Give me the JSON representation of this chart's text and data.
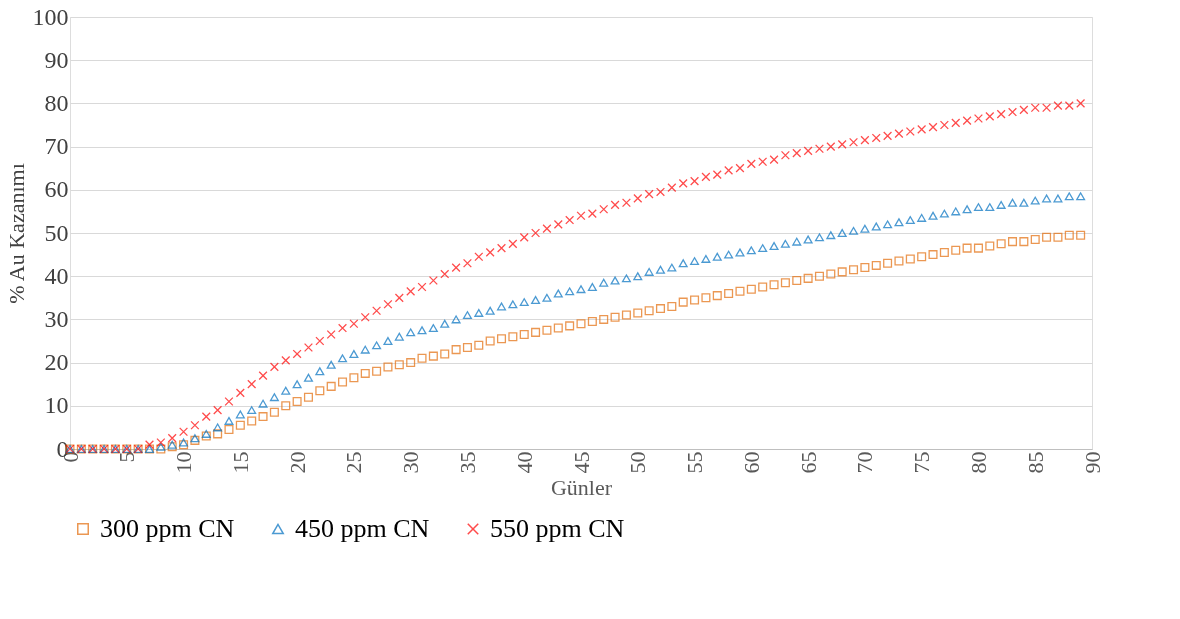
{
  "chart_data": {
    "type": "scatter",
    "xlabel": "Günler",
    "ylabel": "% Au Kazanımı",
    "x": [
      0,
      1,
      2,
      3,
      4,
      5,
      6,
      7,
      8,
      9,
      10,
      11,
      12,
      13,
      14,
      15,
      16,
      17,
      18,
      19,
      20,
      21,
      22,
      23,
      24,
      25,
      26,
      27,
      28,
      29,
      30,
      31,
      32,
      33,
      34,
      35,
      36,
      37,
      38,
      39,
      40,
      41,
      42,
      43,
      44,
      45,
      46,
      47,
      48,
      49,
      50,
      51,
      52,
      53,
      54,
      55,
      56,
      57,
      58,
      59,
      60,
      61,
      62,
      63,
      64,
      65,
      66,
      67,
      68,
      69,
      70,
      71,
      72,
      73,
      74,
      75,
      76,
      77,
      78,
      79,
      80,
      81,
      82,
      83,
      84,
      85,
      86,
      87,
      88,
      89
    ],
    "series": [
      {
        "name": "300 ppm CN",
        "color": "#e36c0a",
        "marker": "square",
        "values": [
          0,
          0,
          0,
          0,
          0,
          0,
          0,
          0,
          0,
          0.5,
          1,
          2,
          3,
          3.5,
          4.5,
          5.5,
          6.5,
          7.5,
          8.5,
          10,
          11,
          12,
          13.5,
          14.5,
          15.5,
          16.5,
          17.5,
          18,
          19,
          19.5,
          20,
          21,
          21.5,
          22,
          23,
          23.5,
          24,
          25,
          25.5,
          26,
          26.5,
          27,
          27.5,
          28,
          28.5,
          29,
          29.5,
          30,
          30.5,
          31,
          31.5,
          32,
          32.5,
          33,
          34,
          34.5,
          35,
          35.5,
          36,
          36.5,
          37,
          37.5,
          38,
          38.5,
          39,
          39.5,
          40,
          40.5,
          41,
          41.5,
          42,
          42.5,
          43,
          43.5,
          44,
          44.5,
          45,
          45.5,
          46,
          46.5,
          46.5,
          47,
          47.5,
          48,
          48,
          48.5,
          49,
          49,
          49.5,
          49.5
        ]
      },
      {
        "name": "450 ppm CN",
        "color": "#0070c0",
        "marker": "triangle",
        "values": [
          0,
          0,
          0,
          0,
          0,
          0,
          0,
          0,
          0.5,
          1,
          1.5,
          2.5,
          3.5,
          5,
          6.5,
          8,
          9,
          10.5,
          12,
          13.5,
          15,
          16.5,
          18,
          19.5,
          21,
          22,
          23,
          24,
          25,
          26,
          27,
          27.5,
          28,
          29,
          30,
          31,
          31.5,
          32,
          33,
          33.5,
          34,
          34.5,
          35,
          36,
          36.5,
          37,
          37.5,
          38.5,
          39,
          39.5,
          40,
          41,
          41.5,
          42,
          43,
          43.5,
          44,
          44.5,
          45,
          45.5,
          46,
          46.5,
          47,
          47.5,
          48,
          48.5,
          49,
          49.5,
          50,
          50.5,
          51,
          51.5,
          52,
          52.5,
          53,
          53.5,
          54,
          54.5,
          55,
          55.5,
          56,
          56,
          56.5,
          57,
          57,
          57.5,
          58,
          58,
          58.5,
          58.5
        ]
      },
      {
        "name": "550 ppm CN",
        "color": "#ff0000",
        "marker": "cross",
        "values": [
          0,
          0,
          0,
          0,
          0,
          0,
          0,
          1,
          1.5,
          2.5,
          4,
          5.5,
          7.5,
          9,
          11,
          13,
          15,
          17,
          19,
          20.5,
          22,
          23.5,
          25,
          26.5,
          28,
          29,
          30.5,
          32,
          33.5,
          35,
          36.5,
          37.5,
          39,
          40.5,
          42,
          43,
          44.5,
          45.5,
          46.5,
          47.5,
          49,
          50,
          51,
          52,
          53,
          54,
          54.5,
          55.5,
          56.5,
          57,
          58,
          59,
          59.5,
          60.5,
          61.5,
          62,
          63,
          63.5,
          64.5,
          65,
          66,
          66.5,
          67,
          68,
          68.5,
          69,
          69.5,
          70,
          70.5,
          71,
          71.5,
          72,
          72.5,
          73,
          73.5,
          74,
          74.5,
          75,
          75.5,
          76,
          76.5,
          77,
          77.5,
          78,
          78.5,
          79,
          79,
          79.5,
          79.5,
          80
        ]
      }
    ],
    "xlim": [
      0,
      90
    ],
    "xticks": [
      0,
      5,
      10,
      15,
      20,
      25,
      30,
      35,
      40,
      45,
      50,
      55,
      60,
      65,
      70,
      75,
      80,
      85,
      90
    ],
    "ylim": [
      0,
      100
    ],
    "yticks": [
      0,
      10,
      20,
      30,
      40,
      50,
      60,
      70,
      80,
      90,
      100
    ],
    "grid": "y",
    "legend": "bottom"
  }
}
